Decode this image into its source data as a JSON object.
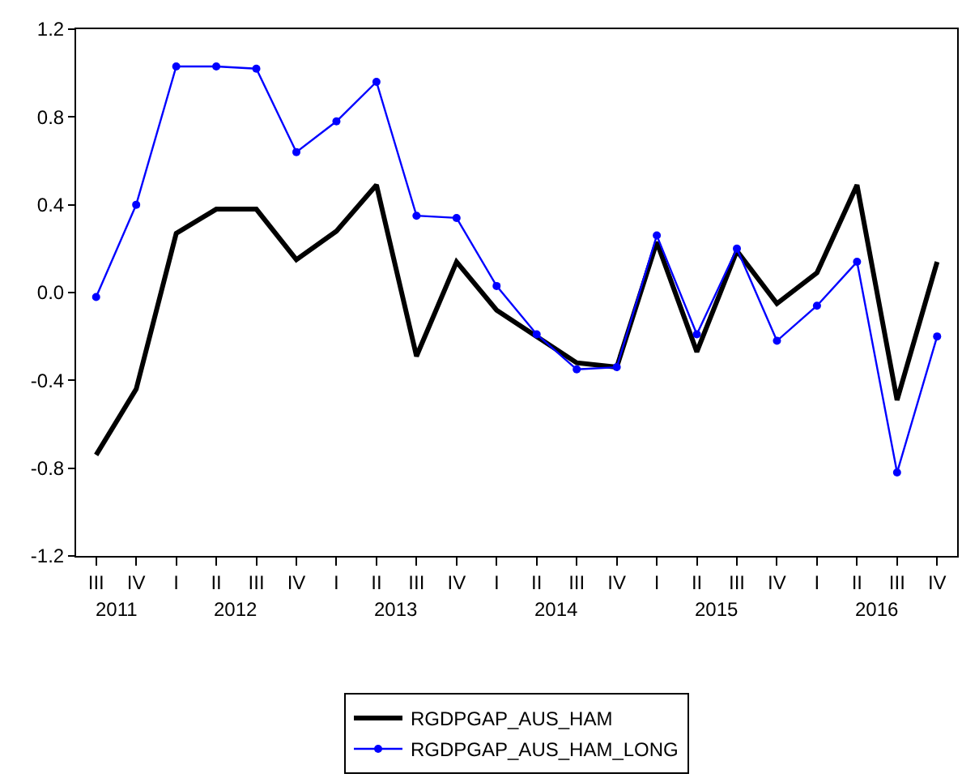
{
  "chart_data": {
    "type": "line",
    "categories": [
      "III",
      "IV",
      "I",
      "II",
      "III",
      "IV",
      "I",
      "II",
      "III",
      "IV",
      "I",
      "II",
      "III",
      "IV",
      "I",
      "II",
      "III",
      "IV",
      "I",
      "II",
      "III",
      "IV"
    ],
    "series": [
      {
        "name": "RGDPGAP_AUS_HAM",
        "color": "#000000",
        "marker": "none",
        "values": [
          -0.74,
          -0.44,
          0.27,
          0.38,
          0.38,
          0.15,
          0.28,
          0.49,
          -0.29,
          0.14,
          -0.08,
          -0.2,
          -0.32,
          -0.34,
          0.23,
          -0.27,
          0.19,
          -0.05,
          0.09,
          0.49,
          -0.49,
          0.14
        ]
      },
      {
        "name": "RGDPGAP_AUS_HAM_LONG",
        "color": "#0000ff",
        "marker": "circle",
        "values": [
          -0.02,
          0.4,
          1.03,
          1.03,
          1.02,
          0.64,
          0.78,
          0.96,
          0.35,
          0.34,
          0.03,
          -0.19,
          -0.35,
          -0.34,
          0.26,
          -0.19,
          0.2,
          -0.22,
          -0.06,
          0.14,
          -0.82,
          -0.2
        ]
      }
    ],
    "annotations": [
      "2011",
      "2012",
      "2013",
      "2014",
      "2015",
      "2016"
    ],
    "ylim": [
      -1.2,
      1.2
    ],
    "yticks": [
      {
        "value": -1.2,
        "label": "-1.2"
      },
      {
        "value": -0.8,
        "label": "-0.8"
      },
      {
        "value": -0.4,
        "label": "-0.4"
      },
      {
        "value": 0,
        "label": "0.0"
      },
      {
        "value": 0.4,
        "label": "0.4"
      },
      {
        "value": 0.8,
        "label": "0.8"
      },
      {
        "value": 1.2,
        "label": "1.2"
      }
    ],
    "legend": "bottom",
    "line_style": "solid"
  }
}
